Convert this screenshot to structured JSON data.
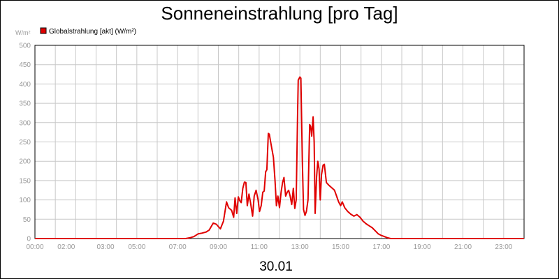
{
  "chart_data": {
    "type": "line",
    "title": "Sonneneinstrahlung [pro Tag]",
    "ylabel": "W/m²",
    "xlabel": "30.01",
    "ylim": [
      0,
      500
    ],
    "xlim": [
      0,
      24
    ],
    "grid": true,
    "legend_position": "top-left",
    "y_ticks": [
      "0",
      "50",
      "100",
      "150",
      "200",
      "250",
      "300",
      "350",
      "400",
      "450",
      "500"
    ],
    "x_ticks": [
      {
        "label": "00:00",
        "x": 0
      },
      {
        "label": "02:00",
        "x": 2
      },
      {
        "label": "03:00",
        "x": 3
      },
      {
        "label": "05:00",
        "x": 5
      },
      {
        "label": "07:00",
        "x": 7
      },
      {
        "label": "09:00",
        "x": 9
      },
      {
        "label": "11:00",
        "x": 11
      },
      {
        "label": "13:00",
        "x": 13
      },
      {
        "label": "15:00",
        "x": 15
      },
      {
        "label": "17:00",
        "x": 17
      },
      {
        "label": "19:00",
        "x": 19
      },
      {
        "label": "21:00",
        "x": 21
      },
      {
        "label": "23:00",
        "x": 23
      }
    ],
    "series": [
      {
        "name": "Globalstrahlung [akt] (W/m²)",
        "color": "#e00000",
        "points": [
          [
            0,
            0
          ],
          [
            7.4,
            0
          ],
          [
            7.6,
            2
          ],
          [
            7.8,
            5
          ],
          [
            8.0,
            12
          ],
          [
            8.2,
            14
          ],
          [
            8.4,
            17
          ],
          [
            8.55,
            22
          ],
          [
            8.75,
            40
          ],
          [
            8.9,
            37
          ],
          [
            9.1,
            25
          ],
          [
            9.25,
            45
          ],
          [
            9.4,
            95
          ],
          [
            9.5,
            80
          ],
          [
            9.65,
            73
          ],
          [
            9.75,
            55
          ],
          [
            9.82,
            105
          ],
          [
            9.9,
            65
          ],
          [
            9.98,
            108
          ],
          [
            10.05,
            98
          ],
          [
            10.12,
            93
          ],
          [
            10.2,
            130
          ],
          [
            10.28,
            146
          ],
          [
            10.35,
            145
          ],
          [
            10.42,
            85
          ],
          [
            10.5,
            115
          ],
          [
            10.58,
            92
          ],
          [
            10.68,
            58
          ],
          [
            10.76,
            110
          ],
          [
            10.85,
            125
          ],
          [
            10.95,
            100
          ],
          [
            11.02,
            70
          ],
          [
            11.1,
            85
          ],
          [
            11.18,
            120
          ],
          [
            11.25,
            123
          ],
          [
            11.32,
            173
          ],
          [
            11.38,
            178
          ],
          [
            11.45,
            272
          ],
          [
            11.5,
            270
          ],
          [
            11.6,
            240
          ],
          [
            11.7,
            210
          ],
          [
            11.78,
            150
          ],
          [
            11.85,
            85
          ],
          [
            11.92,
            110
          ],
          [
            12.0,
            80
          ],
          [
            12.08,
            120
          ],
          [
            12.15,
            145
          ],
          [
            12.22,
            158
          ],
          [
            12.3,
            110
          ],
          [
            12.38,
            120
          ],
          [
            12.45,
            125
          ],
          [
            12.52,
            110
          ],
          [
            12.6,
            88
          ],
          [
            12.68,
            130
          ],
          [
            12.75,
            78
          ],
          [
            12.82,
            100
          ],
          [
            12.88,
            300
          ],
          [
            12.92,
            410
          ],
          [
            13.0,
            418
          ],
          [
            13.05,
            415
          ],
          [
            13.12,
            200
          ],
          [
            13.18,
            75
          ],
          [
            13.25,
            60
          ],
          [
            13.32,
            70
          ],
          [
            13.4,
            100
          ],
          [
            13.48,
            295
          ],
          [
            13.53,
            290
          ],
          [
            13.58,
            265
          ],
          [
            13.65,
            315
          ],
          [
            13.7,
            250
          ],
          [
            13.75,
            65
          ],
          [
            13.82,
            160
          ],
          [
            13.88,
            200
          ],
          [
            13.94,
            180
          ],
          [
            14.0,
            100
          ],
          [
            14.06,
            165
          ],
          [
            14.14,
            190
          ],
          [
            14.2,
            192
          ],
          [
            14.3,
            145
          ],
          [
            14.42,
            138
          ],
          [
            14.55,
            132
          ],
          [
            14.7,
            125
          ],
          [
            14.8,
            110
          ],
          [
            14.9,
            95
          ],
          [
            15.0,
            85
          ],
          [
            15.08,
            95
          ],
          [
            15.2,
            80
          ],
          [
            15.35,
            70
          ],
          [
            15.5,
            63
          ],
          [
            15.65,
            58
          ],
          [
            15.8,
            62
          ],
          [
            15.95,
            55
          ],
          [
            16.1,
            45
          ],
          [
            16.25,
            38
          ],
          [
            16.4,
            33
          ],
          [
            16.55,
            28
          ],
          [
            16.7,
            20
          ],
          [
            16.85,
            12
          ],
          [
            17.0,
            8
          ],
          [
            17.15,
            5
          ],
          [
            17.3,
            2
          ],
          [
            17.45,
            0
          ],
          [
            24,
            0
          ]
        ]
      }
    ]
  }
}
